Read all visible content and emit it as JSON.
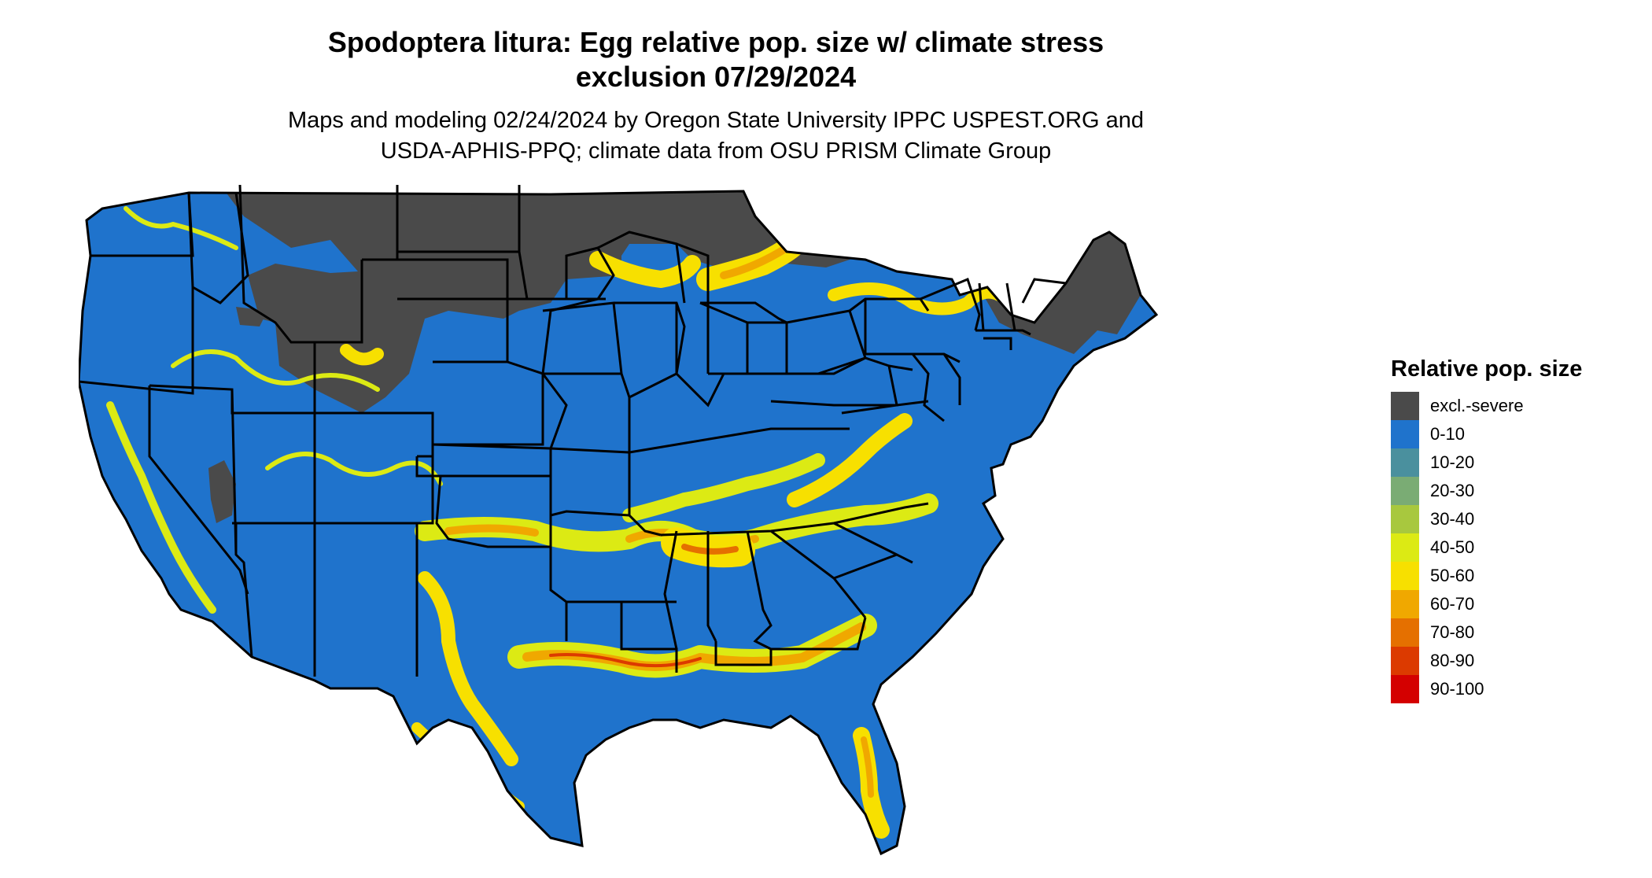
{
  "title_line1": "Spodoptera litura: Egg relative pop. size w/ climate stress",
  "title_line2": "exclusion 07/29/2024",
  "subtitle_line1": "Maps and modeling 02/24/2024 by Oregon State University IPPC USPEST.ORG and",
  "subtitle_line2": "USDA-APHIS-PPQ; climate data from OSU PRISM Climate Group",
  "legend": {
    "title": "Relative pop. size",
    "items": [
      {
        "label": "excl.-severe",
        "color": "#4a4a4a"
      },
      {
        "label": "0-10",
        "color": "#1f73cc"
      },
      {
        "label": "10-20",
        "color": "#4a909e"
      },
      {
        "label": "20-30",
        "color": "#7aac74"
      },
      {
        "label": "30-40",
        "color": "#a8c83e"
      },
      {
        "label": "40-50",
        "color": "#dcea14"
      },
      {
        "label": "50-60",
        "color": "#f7e000"
      },
      {
        "label": "60-70",
        "color": "#f0a800"
      },
      {
        "label": "70-80",
        "color": "#e57000"
      },
      {
        "label": "80-90",
        "color": "#dc3a00"
      },
      {
        "label": "90-100",
        "color": "#d40000"
      }
    ]
  }
}
